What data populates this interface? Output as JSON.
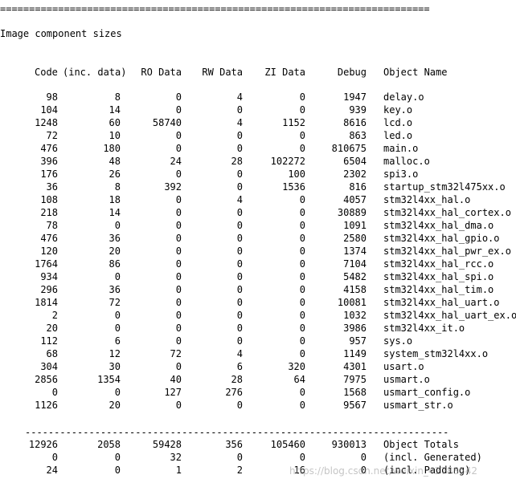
{
  "separator_top": "==========================================================================",
  "section_title": "Image component sizes",
  "headers": {
    "code": "Code",
    "inc_data": "(inc. data)",
    "ro": "RO Data",
    "rw": "RW Data",
    "zi": "ZI Data",
    "debug": "Debug",
    "name": "Object Name"
  },
  "rows": [
    [
      "98",
      "8",
      "0",
      "4",
      "0",
      "1947",
      "delay.o"
    ],
    [
      "104",
      "14",
      "0",
      "0",
      "0",
      "939",
      "key.o"
    ],
    [
      "1248",
      "60",
      "58740",
      "4",
      "1152",
      "8616",
      "lcd.o"
    ],
    [
      "72",
      "10",
      "0",
      "0",
      "0",
      "863",
      "led.o"
    ],
    [
      "476",
      "180",
      "0",
      "0",
      "0",
      "810675",
      "main.o"
    ],
    [
      "396",
      "48",
      "24",
      "28",
      "102272",
      "6504",
      "malloc.o"
    ],
    [
      "176",
      "26",
      "0",
      "0",
      "100",
      "2302",
      "spi3.o"
    ],
    [
      "36",
      "8",
      "392",
      "0",
      "1536",
      "816",
      "startup_stm32l475xx.o"
    ],
    [
      "108",
      "18",
      "0",
      "4",
      "0",
      "4057",
      "stm32l4xx_hal.o"
    ],
    [
      "218",
      "14",
      "0",
      "0",
      "0",
      "30889",
      "stm32l4xx_hal_cortex.o"
    ],
    [
      "78",
      "0",
      "0",
      "0",
      "0",
      "1091",
      "stm32l4xx_hal_dma.o"
    ],
    [
      "476",
      "36",
      "0",
      "0",
      "0",
      "2580",
      "stm32l4xx_hal_gpio.o"
    ],
    [
      "120",
      "20",
      "0",
      "0",
      "0",
      "1374",
      "stm32l4xx_hal_pwr_ex.o"
    ],
    [
      "1764",
      "86",
      "0",
      "0",
      "0",
      "7104",
      "stm32l4xx_hal_rcc.o"
    ],
    [
      "934",
      "0",
      "0",
      "0",
      "0",
      "5482",
      "stm32l4xx_hal_spi.o"
    ],
    [
      "296",
      "36",
      "0",
      "0",
      "0",
      "4158",
      "stm32l4xx_hal_tim.o"
    ],
    [
      "1814",
      "72",
      "0",
      "0",
      "0",
      "10081",
      "stm32l4xx_hal_uart.o"
    ],
    [
      "2",
      "0",
      "0",
      "0",
      "0",
      "1032",
      "stm32l4xx_hal_uart_ex.o"
    ],
    [
      "20",
      "0",
      "0",
      "0",
      "0",
      "3986",
      "stm32l4xx_it.o"
    ],
    [
      "112",
      "6",
      "0",
      "0",
      "0",
      "957",
      "sys.o"
    ],
    [
      "68",
      "12",
      "72",
      "4",
      "0",
      "1149",
      "system_stm32l4xx.o"
    ],
    [
      "304",
      "30",
      "0",
      "6",
      "320",
      "4301",
      "usart.o"
    ],
    [
      "2856",
      "1354",
      "40",
      "28",
      "64",
      "7975",
      "usmart.o"
    ],
    [
      "0",
      "0",
      "127",
      "276",
      "0",
      "1568",
      "usmart_config.o"
    ],
    [
      "1126",
      "20",
      "0",
      "0",
      "0",
      "9567",
      "usmart_str.o"
    ]
  ],
  "separator_bottom": "-------------------------------------------------------------------------",
  "totals": [
    [
      "12926",
      "2058",
      "59428",
      "356",
      "105460",
      "930013",
      "Object Totals"
    ],
    [
      "0",
      "0",
      "32",
      "0",
      "0",
      "0",
      "(incl. Generated)"
    ],
    [
      "24",
      "0",
      "1",
      "2",
      "16",
      "0",
      "(incl. Padding)"
    ]
  ],
  "watermark": "https://blog.csdn.net/weixin_42788542"
}
